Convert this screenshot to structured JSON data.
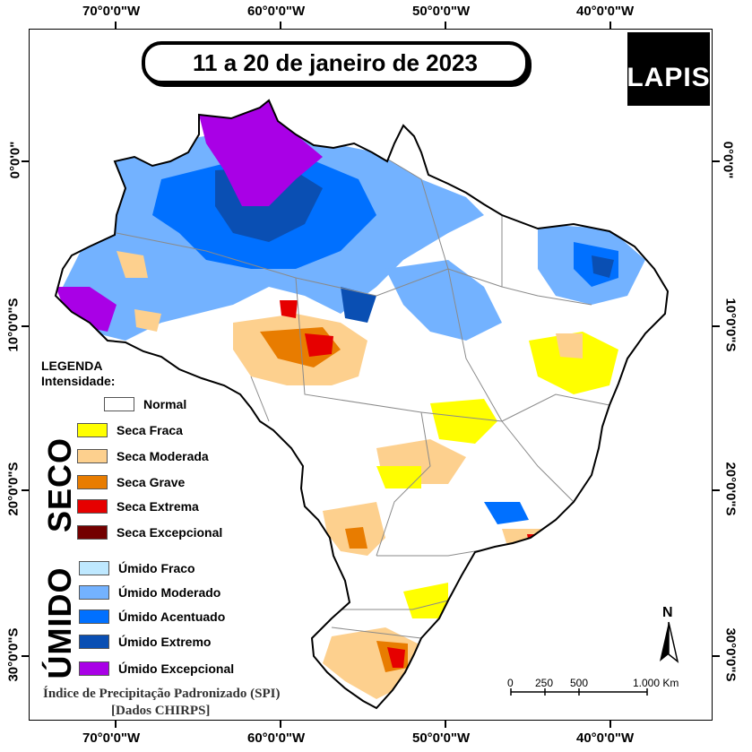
{
  "title": "11 a 20 de janeiro de 2023",
  "logo_text": "LAPIS",
  "longitude_ticks": [
    "70°0'0\"W",
    "60°0'0\"W",
    "50°0'0\"W",
    "40°0'0\"W"
  ],
  "latitude_ticks": [
    "0°0'0\"",
    "10°0'0\"S",
    "20°0'0\"S",
    "30°0'0\"S"
  ],
  "legend": {
    "heading": "LEGENDA",
    "subheading": "Intensidade:",
    "normal": {
      "label": "Normal",
      "color": "#ffffff"
    },
    "dry_group_label": "SECO",
    "dry": [
      {
        "label": "Seca Fraca",
        "color": "#ffff00"
      },
      {
        "label": "Seca Moderada",
        "color": "#fdd08e"
      },
      {
        "label": "Seca Grave",
        "color": "#e87c00"
      },
      {
        "label": "Seca Extrema",
        "color": "#e60000"
      },
      {
        "label": "Seca Excepcional",
        "color": "#730000"
      }
    ],
    "wet_group_label": "ÚMIDO",
    "wet": [
      {
        "label": "Úmido Fraco",
        "color": "#bee8ff"
      },
      {
        "label": "Úmido Moderado",
        "color": "#73b2ff"
      },
      {
        "label": "Úmido Acentuado",
        "color": "#0070ff"
      },
      {
        "label": "Úmido Extremo",
        "color": "#0a4fb3"
      },
      {
        "label": "Úmido Excepcional",
        "color": "#a900e6"
      }
    ]
  },
  "caption_line1": "Índice de Precipitação Padronizado (SPI)",
  "caption_line2": "[Dados CHIRPS]",
  "scale_bar": {
    "labels": [
      "0",
      "250",
      "500",
      "1.000 Km"
    ]
  },
  "north_label": "N"
}
